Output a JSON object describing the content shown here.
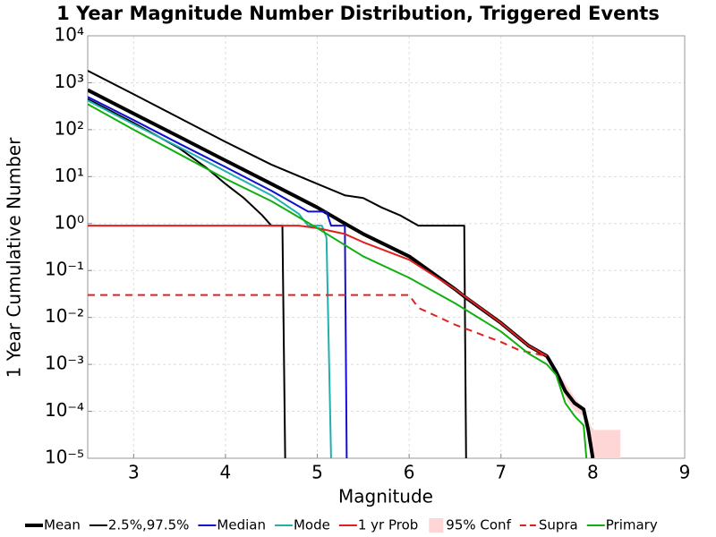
{
  "chart_data": {
    "type": "line",
    "title": "1 Year Magnitude Number Distribution, Triggered Events",
    "x_label": "Magnitude",
    "y_label": "1 Year Cumulative Number",
    "xlim": [
      2.5,
      9
    ],
    "xticks": [
      3,
      4,
      5,
      6,
      7,
      8,
      9
    ],
    "ylim": [
      1e-05,
      10000
    ],
    "y_log": true,
    "yticks": [
      {
        "value": 10000,
        "label": "10⁴"
      },
      {
        "value": 1000,
        "label": "10³"
      },
      {
        "value": 100,
        "label": "10²"
      },
      {
        "value": 10,
        "label": "10¹"
      },
      {
        "value": 1,
        "label": "10⁰"
      },
      {
        "value": 0.1,
        "label": "10⁻¹"
      },
      {
        "value": 0.01,
        "label": "10⁻²"
      },
      {
        "value": 0.001,
        "label": "10⁻³"
      },
      {
        "value": 0.0001,
        "label": "10⁻⁴"
      },
      {
        "value": 1e-05,
        "label": "10⁻⁵"
      }
    ],
    "grid": true,
    "legend": "bottom",
    "series": [
      {
        "name": "Mean",
        "color": "#000000",
        "line_width": 4,
        "lines": [
          {
            "x": [
              2.5,
              3,
              3.5,
              4,
              4.5,
              5,
              5.3,
              5.5,
              6,
              6.5,
              6.6,
              7,
              7.3,
              7.5,
              7.6,
              7.7,
              7.8,
              7.9,
              7.95,
              8.0
            ],
            "values": [
              700,
              220,
              70,
              22,
              7,
              2.2,
              1,
              0.6,
              0.2,
              0.04,
              0.028,
              0.0076,
              0.0025,
              0.0015,
              0.0007,
              0.00027,
              0.00015,
              0.00011,
              4e-05,
              1e-05
            ]
          }
        ]
      },
      {
        "name": "2.5%,97.5%",
        "color": "#000000",
        "line_width": 2,
        "lines": [
          {
            "x": [
              2.5,
              3,
              3.5,
              3.8,
              4,
              4.2,
              4.4,
              4.5,
              4.62,
              4.65
            ],
            "values": [
              450,
              140,
              40,
              15,
              7,
              3.5,
              1.5,
              0.9,
              0.9,
              1e-05
            ]
          },
          {
            "x": [
              2.5,
              3,
              4,
              4.5,
              5,
              5.3,
              5.5,
              5.7,
              5.9,
              6.1,
              6.6,
              6.62
            ],
            "values": [
              1800,
              570,
              55,
              18,
              7,
              4,
              3.5,
              2.2,
              1.5,
              0.9,
              0.9,
              1e-05
            ]
          }
        ]
      },
      {
        "name": "Median",
        "color": "#1010d0",
        "line_width": 2,
        "lines": [
          {
            "x": [
              2.5,
              3,
              3.5,
              4,
              4.5,
              4.9,
              5.1,
              5.15,
              5.3,
              5.32
            ],
            "values": [
              500,
              160,
              50,
              16,
              5,
              1.8,
              1.8,
              0.9,
              0.9,
              1e-05
            ]
          }
        ]
      },
      {
        "name": "Mode",
        "color": "#20b0b0",
        "line_width": 2,
        "lines": [
          {
            "x": [
              2.5,
              3,
              3.5,
              4,
              4.5,
              4.8,
              4.9,
              5.05,
              5.1,
              5.15
            ],
            "values": [
              420,
              130,
              42,
              13,
              4,
              1.6,
              0.9,
              0.9,
              0.5,
              1e-05
            ]
          }
        ]
      },
      {
        "name": "1 yr Prob",
        "color": "#e02020",
        "line_width": 2,
        "lines": [
          {
            "x": [
              2.5,
              4.8,
              5.0,
              5.3,
              5.5,
              6,
              6.5,
              7,
              7.3,
              7.5
            ],
            "values": [
              0.9,
              0.9,
              0.8,
              0.6,
              0.4,
              0.17,
              0.04,
              0.0076,
              0.0025,
              0.0015
            ]
          }
        ]
      },
      {
        "name": "95% Conf",
        "color": "#ffd6d6",
        "band": {
          "x": [
            7.5,
            7.6,
            7.7,
            7.8,
            7.9,
            8.0,
            8.3
          ],
          "upper": [
            0.0015,
            0.0008,
            0.0004,
            0.0002,
            0.00011,
            4e-05,
            4e-05
          ],
          "lower": [
            0.0015,
            0.0006,
            0.0002,
            0.0001,
            8e-05,
            1e-05,
            1e-05
          ]
        }
      },
      {
        "name": "Supra",
        "color": "#e02020",
        "line_width": 2,
        "dashed": true,
        "lines": [
          {
            "x": [
              2.5,
              6.0,
              6.1,
              6.5,
              7,
              7.2,
              7.5
            ],
            "values": [
              0.03,
              0.03,
              0.016,
              0.007,
              0.003,
              0.002,
              0.0015
            ]
          }
        ]
      },
      {
        "name": "Primary",
        "color": "#10b010",
        "line_width": 2,
        "lines": [
          {
            "x": [
              2.5,
              3,
              3.5,
              4,
              4.5,
              5,
              5.5,
              6,
              6.5,
              7,
              7.3,
              7.5,
              7.6,
              7.7,
              7.8,
              7.9,
              7.93
            ],
            "values": [
              350,
              100,
              30,
              9,
              3,
              0.8,
              0.2,
              0.07,
              0.02,
              0.005,
              0.0017,
              0.001,
              0.0006,
              0.00015,
              8e-05,
              5e-05,
              1e-05
            ]
          }
        ]
      }
    ]
  }
}
